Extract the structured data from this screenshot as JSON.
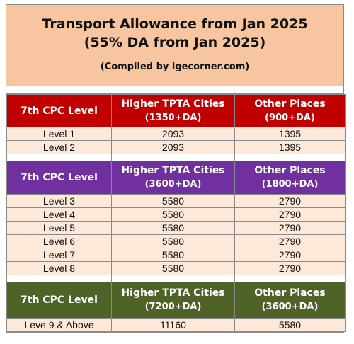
{
  "title": {
    "line1": "Transport Allowance from Jan 2025",
    "line2": "(55% DA from Jan 2025)",
    "credit": "(Compiled by igecorner.com)"
  },
  "groups": [
    {
      "header": {
        "level": "7th CPC Level",
        "col2_top": "Higher TPTA Cities",
        "col2_bot": "(1350+DA)",
        "col3_top": "Other Places",
        "col3_bot": "(900+DA)"
      },
      "rows": [
        {
          "level": "Level 1",
          "tpta": "2093",
          "other": "1395"
        },
        {
          "level": "Level 2",
          "tpta": "2093",
          "other": "1395"
        }
      ]
    },
    {
      "header": {
        "level": "7th CPC Level",
        "col2_top": "Higher TPTA Cities",
        "col2_bot": "(3600+DA)",
        "col3_top": "Other Places",
        "col3_bot": "(1800+DA)"
      },
      "rows": [
        {
          "level": "Level 3",
          "tpta": "5580",
          "other": "2790"
        },
        {
          "level": "Level 4",
          "tpta": "5580",
          "other": "2790"
        },
        {
          "level": "Level 5",
          "tpta": "5580",
          "other": "2790"
        },
        {
          "level": "Level 6",
          "tpta": "5580",
          "other": "2790"
        },
        {
          "level": "Level 7",
          "tpta": "5580",
          "other": "2790"
        },
        {
          "level": "Level 8",
          "tpta": "5580",
          "other": "2790"
        }
      ]
    },
    {
      "header": {
        "level": "7th CPC Level",
        "col2_top": "Higher TPTA Cities",
        "col2_bot": "(7200+DA)",
        "col3_top": "Other Places",
        "col3_bot": "(3600+DA)"
      },
      "rows": [
        {
          "level": "Leve 9 & Above",
          "tpta": "11160",
          "other": "5580"
        }
      ]
    }
  ],
  "colors": {
    "title_bg": "#f7c59f",
    "row_bg": "#fde9d9",
    "group1": "#c00000",
    "group2": "#7030a0",
    "group3": "#4f6228"
  }
}
